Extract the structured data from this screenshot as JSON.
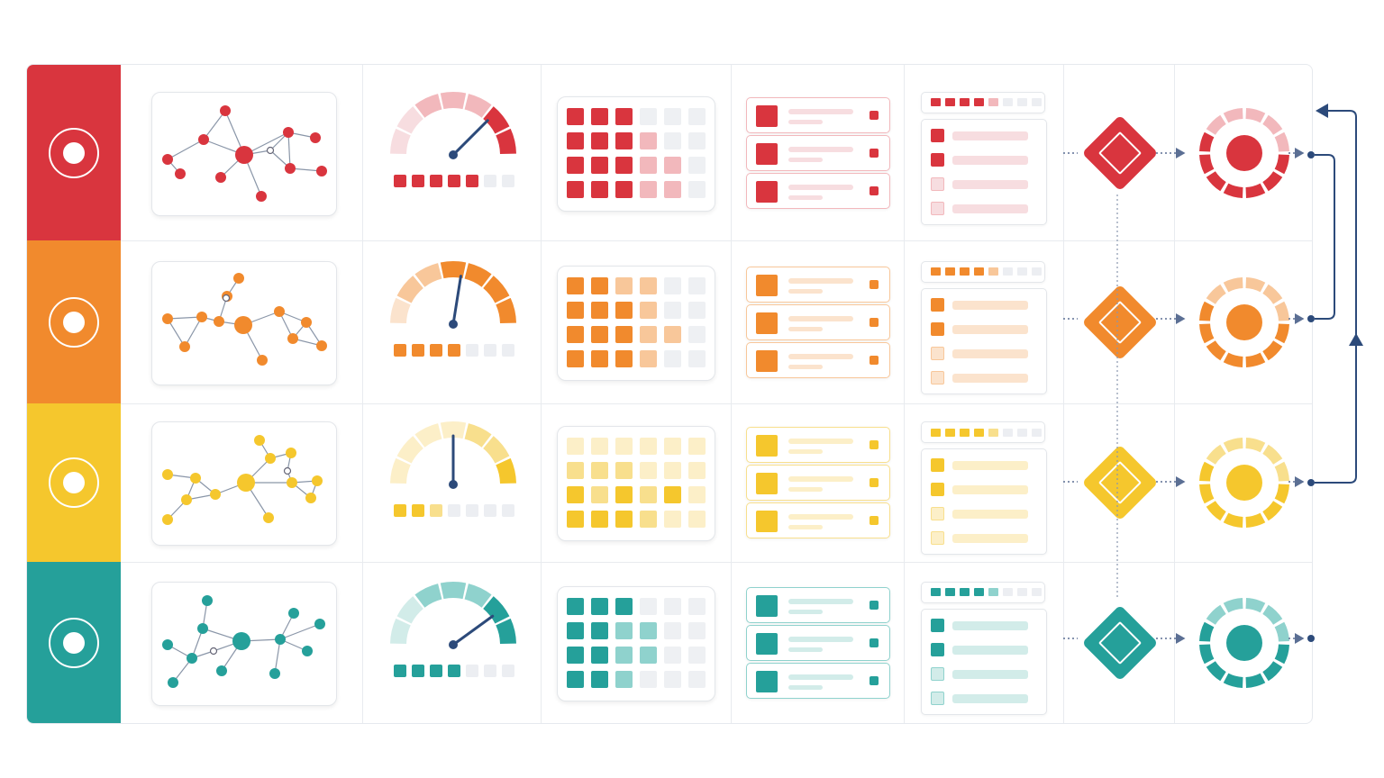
{
  "rows": [
    {
      "name": "red",
      "color": "#d9353e",
      "light": "#f2b8bc",
      "pale": "#f7dde0"
    },
    {
      "name": "orange",
      "color": "#f18a2d",
      "light": "#f8c79a",
      "pale": "#fbe3cd"
    },
    {
      "name": "yellow",
      "color": "#f5c72d",
      "light": "#f8df8d",
      "pale": "#fcefc8"
    },
    {
      "name": "teal",
      "color": "#25a09a",
      "light": "#8fd2cd",
      "pale": "#d2ece9"
    }
  ],
  "gauge_levels": [
    0.75,
    0.55,
    0.5,
    0.8
  ],
  "connector_color": "#2c4a7a",
  "icons": {
    "band": "target-ring-icon",
    "network": "network-graph-icon",
    "gauge": "speedometer-icon",
    "grid": "heatmap-grid-icon",
    "list": "list-cards-icon",
    "table": "checklist-table-icon",
    "decision": "diamond-decision-icon",
    "target": "target-donut-icon"
  }
}
